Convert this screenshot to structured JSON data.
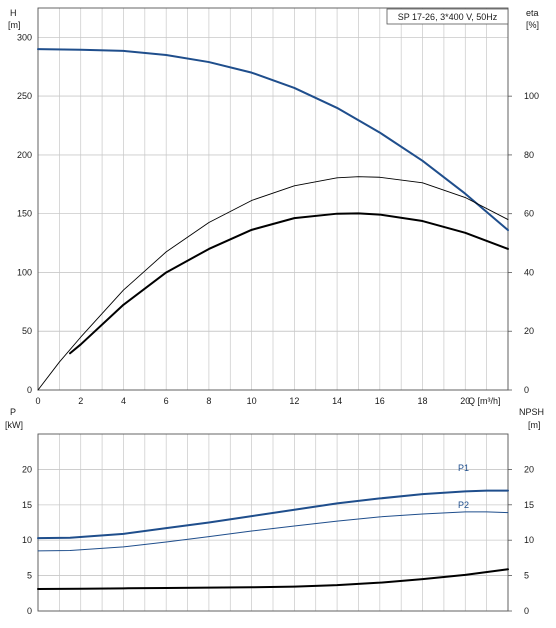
{
  "chart_data": [
    {
      "type": "line",
      "title": "SP 17-26, 3*400 V, 50Hz",
      "xlabel": "Q [m³/h]",
      "x_ticks": [
        "0",
        "2",
        "4",
        "6",
        "8",
        "10",
        "12",
        "14",
        "16",
        "18",
        "20"
      ],
      "xlim": [
        0,
        22
      ],
      "left_axis": {
        "label_line1": "H",
        "label_line2": "[m]",
        "ylim": [
          0,
          325
        ],
        "ticks": [
          "0",
          "50",
          "100",
          "150",
          "200",
          "250",
          "300"
        ]
      },
      "right_axis": {
        "label_line1": "eta",
        "label_line2": "[%]",
        "ylim": [
          0,
          130
        ],
        "ticks": [
          "0",
          "20",
          "40",
          "60",
          "80",
          "100"
        ]
      },
      "grid": true,
      "series": [
        {
          "axis": "left",
          "color": "#1f4e8c",
          "width": 2.0,
          "x": [
            0,
            2,
            4,
            6,
            8,
            10,
            12,
            14,
            16,
            18,
            20,
            22
          ],
          "y": [
            290,
            289.5,
            288.5,
            285,
            279,
            270,
            257,
            240,
            219,
            195,
            167,
            136
          ]
        },
        {
          "axis": "right",
          "color": "#000000",
          "width": 0.9,
          "x": [
            0,
            1,
            2,
            4,
            6,
            8,
            10,
            12,
            14,
            15,
            16,
            18,
            20,
            22
          ],
          "y": [
            0,
            9.5,
            18,
            34,
            47,
            57,
            64.5,
            69.5,
            72.2,
            72.6,
            72.4,
            70.5,
            65.5,
            58
          ]
        },
        {
          "axis": "right",
          "color": "#000000",
          "width": 2.0,
          "x": [
            1.5,
            2,
            4,
            6,
            8,
            10,
            12,
            14,
            15,
            16,
            18,
            20,
            22
          ],
          "y": [
            12.5,
            15.5,
            29,
            40,
            48,
            54.5,
            58.5,
            60,
            60.1,
            59.7,
            57.5,
            53.5,
            48
          ]
        }
      ]
    },
    {
      "type": "line",
      "x_ticks": [],
      "xlim": [
        0,
        22
      ],
      "left_axis": {
        "label_line1": "P",
        "label_line2": "[kW]",
        "ylim": [
          0,
          25
        ],
        "ticks": [
          "0",
          "5",
          "10",
          "15",
          "20"
        ]
      },
      "right_axis": {
        "label_line1": "NPSH",
        "label_line2": "[m]",
        "ylim": [
          0,
          25
        ],
        "ticks": [
          "0",
          "5",
          "10",
          "15",
          "20"
        ]
      },
      "grid": true,
      "series": [
        {
          "name": "P1",
          "axis": "left",
          "color": "#1f4e8c",
          "width": 2.0,
          "x": [
            0,
            1.5,
            4,
            6,
            8,
            10,
            12,
            14,
            16,
            18,
            20,
            21,
            22
          ],
          "y": [
            10.3,
            10.35,
            10.9,
            11.7,
            12.5,
            13.4,
            14.3,
            15.2,
            15.9,
            16.5,
            16.9,
            17.0,
            17.0
          ]
        },
        {
          "name": "P2",
          "axis": "left",
          "color": "#1f4e8c",
          "width": 1.0,
          "x": [
            0,
            1.5,
            4,
            6,
            8,
            10,
            12,
            14,
            16,
            18,
            20,
            21,
            22
          ],
          "y": [
            8.5,
            8.55,
            9.05,
            9.75,
            10.5,
            11.3,
            12.0,
            12.7,
            13.3,
            13.7,
            14.0,
            14.0,
            13.9
          ]
        },
        {
          "axis": "right",
          "color": "#000000",
          "width": 2.0,
          "x": [
            0,
            2,
            4,
            6,
            8,
            10,
            12,
            14,
            16,
            18,
            20,
            22
          ],
          "y": [
            3.1,
            3.15,
            3.2,
            3.25,
            3.3,
            3.35,
            3.45,
            3.65,
            4.0,
            4.5,
            5.1,
            5.9
          ]
        }
      ]
    }
  ]
}
